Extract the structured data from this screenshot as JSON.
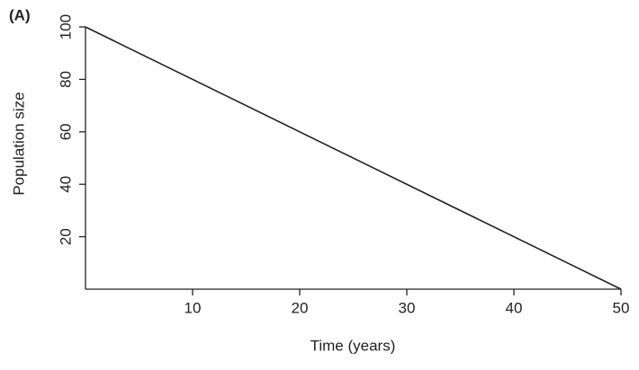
{
  "chart_data": {
    "type": "line",
    "panel_label": "(A)",
    "x_label": "Time (years)",
    "y_label": "Population size",
    "x": [
      0,
      50
    ],
    "values": [
      100,
      0
    ],
    "color": "#222222",
    "xlim": [
      0,
      50
    ],
    "xticks": [
      10,
      20,
      30,
      40,
      50
    ],
    "ylim": [
      0,
      100
    ],
    "yticks": [
      20,
      40,
      60,
      80,
      100
    ]
  }
}
